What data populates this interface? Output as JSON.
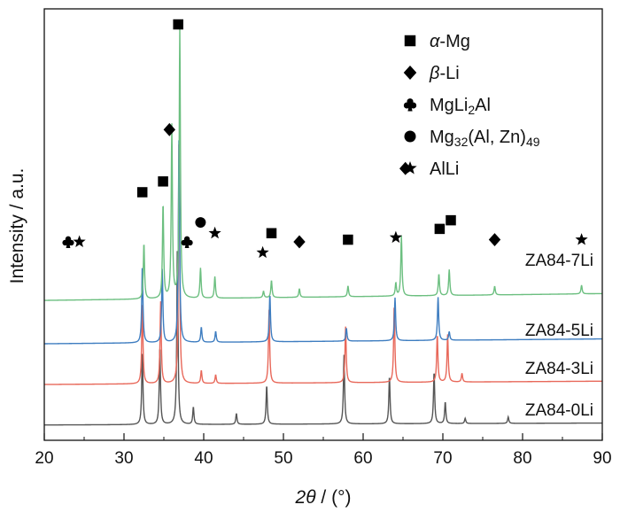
{
  "chart_data": {
    "type": "line",
    "xlabel_sym": "2θ",
    "xlabel_unit": " / (°)",
    "ylabel": "Intensity / a.u.",
    "xlim": [
      20,
      90
    ],
    "xticks": [
      "20",
      "30",
      "40",
      "50",
      "60",
      "70",
      "80",
      "90"
    ],
    "series": [
      {
        "name": "ZA84-0Li",
        "color": "#555555",
        "baseline": 1.0,
        "peaks": [
          [
            32.3,
            17
          ],
          [
            34.5,
            18
          ],
          [
            36.7,
            42
          ],
          [
            38.7,
            4
          ],
          [
            44.1,
            2.5
          ],
          [
            47.9,
            9
          ],
          [
            57.6,
            16
          ],
          [
            63.3,
            11
          ],
          [
            68.9,
            12
          ],
          [
            70.3,
            5
          ],
          [
            72.8,
            1.2
          ],
          [
            78.2,
            1.5
          ]
        ]
      },
      {
        "name": "ZA84-3Li",
        "color": "#e8685a",
        "baseline": 1.7,
        "peaks": [
          [
            32.3,
            19
          ],
          [
            34.6,
            19
          ],
          [
            36.9,
            58
          ],
          [
            39.7,
            3
          ],
          [
            41.5,
            2
          ],
          [
            48.2,
            17
          ],
          [
            57.8,
            13
          ],
          [
            63.9,
            18
          ],
          [
            69.3,
            11
          ],
          [
            70.6,
            11
          ],
          [
            72.4,
            2
          ]
        ]
      },
      {
        "name": "ZA84-5Li",
        "color": "#3e7dc0",
        "baseline": 2.5,
        "peaks": [
          [
            32.3,
            18
          ],
          [
            34.8,
            17
          ],
          [
            36.9,
            49
          ],
          [
            39.7,
            3.5
          ],
          [
            41.5,
            2.5
          ],
          [
            48.3,
            11
          ],
          [
            57.9,
            3
          ],
          [
            64.0,
            10
          ],
          [
            69.4,
            10
          ],
          [
            70.8,
            2
          ]
        ]
      },
      {
        "name": "ZA84-7Li",
        "color": "#6cbf80",
        "baseline": 3.5,
        "peaks": [
          [
            32.5,
            13
          ],
          [
            34.9,
            22
          ],
          [
            36.0,
            40
          ],
          [
            37.0,
            63
          ],
          [
            39.6,
            7
          ],
          [
            41.4,
            5
          ],
          [
            47.5,
            1.5
          ],
          [
            48.5,
            4
          ],
          [
            52.0,
            2
          ],
          [
            58.1,
            2.5
          ],
          [
            64.1,
            3
          ],
          [
            64.8,
            14
          ],
          [
            69.5,
            5
          ],
          [
            70.8,
            6
          ],
          [
            76.5,
            2
          ],
          [
            87.4,
            2
          ]
        ]
      }
    ],
    "annotations": [
      {
        "symbol": "square",
        "x": 32.3,
        "y": 57.5
      },
      {
        "symbol": "square",
        "x": 34.9,
        "y": 60
      },
      {
        "symbol": "square",
        "x": 36.8,
        "y": 96.4
      },
      {
        "symbol": "diamond",
        "x": 35.7,
        "y": 72
      },
      {
        "symbol": "club",
        "x": 23.0,
        "y": 46
      },
      {
        "symbol": "star",
        "x": 24.4,
        "y": 46
      },
      {
        "symbol": "circle",
        "x": 39.6,
        "y": 50.5
      },
      {
        "symbol": "club",
        "x": 37.9,
        "y": 46
      },
      {
        "symbol": "star",
        "x": 41.4,
        "y": 48
      },
      {
        "symbol": "star",
        "x": 47.4,
        "y": 43.5
      },
      {
        "symbol": "square",
        "x": 48.5,
        "y": 48
      },
      {
        "symbol": "diamond",
        "x": 52.0,
        "y": 46
      },
      {
        "symbol": "square",
        "x": 58.1,
        "y": 46.5
      },
      {
        "symbol": "star",
        "x": 64.1,
        "y": 47
      },
      {
        "symbol": "diamond",
        "x": 65.3,
        "y": 63
      },
      {
        "symbol": "square",
        "x": 69.6,
        "y": 49
      },
      {
        "symbol": "square",
        "x": 71.0,
        "y": 51
      },
      {
        "symbol": "diamond",
        "x": 76.5,
        "y": 46.5
      },
      {
        "symbol": "star",
        "x": 87.4,
        "y": 46.5
      }
    ],
    "legend": {
      "placement": "top-right",
      "entries": [
        {
          "symbol": "square",
          "parts": [
            {
              "t": "α",
              "style": "italic"
            },
            {
              "t": "-Mg"
            }
          ]
        },
        {
          "symbol": "diamond",
          "parts": [
            {
              "t": "β",
              "style": "italic"
            },
            {
              "t": "-Li"
            }
          ]
        },
        {
          "symbol": "club",
          "parts": [
            {
              "t": "MgLi"
            },
            {
              "t": "2",
              "style": "sub"
            },
            {
              "t": "Al"
            }
          ]
        },
        {
          "symbol": "circle",
          "parts": [
            {
              "t": "Mg"
            },
            {
              "t": "32",
              "style": "sub"
            },
            {
              "t": "(Al, Zn)"
            },
            {
              "t": "49",
              "style": "sub"
            }
          ]
        },
        {
          "symbol": "star",
          "parts": [
            {
              "t": "AlLi"
            }
          ]
        }
      ]
    }
  }
}
